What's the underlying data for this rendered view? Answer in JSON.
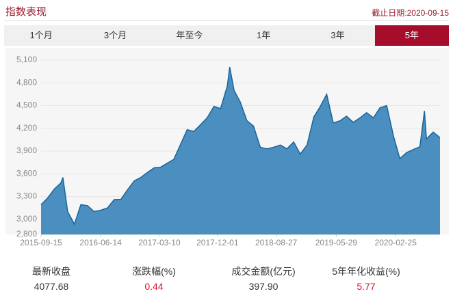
{
  "header": {
    "title": "指数表现",
    "date": "截止日期:2020-09-15"
  },
  "tabs": {
    "items": [
      "1个月",
      "3个月",
      "年至今",
      "1年",
      "3年",
      "5年"
    ],
    "selected_index": 5
  },
  "chart_data": {
    "type": "area",
    "color": "#4a8fbf",
    "line_color": "#1a649b",
    "grid": true,
    "x": [
      "2015-09-15",
      "2015-10-15",
      "2015-11-15",
      "2015-12-15",
      "2015-12-24",
      "2016-01-15",
      "2016-02-15",
      "2016-03-15",
      "2016-04-15",
      "2016-05-15",
      "2016-06-15",
      "2016-07-15",
      "2016-08-15",
      "2016-09-15",
      "2016-10-15",
      "2016-11-15",
      "2016-12-15",
      "2017-01-15",
      "2017-02-15",
      "2017-03-15",
      "2017-04-15",
      "2017-05-15",
      "2017-06-15",
      "2017-07-15",
      "2017-08-15",
      "2017-09-15",
      "2017-10-15",
      "2017-11-15",
      "2017-12-15",
      "2018-01-15",
      "2018-01-26",
      "2018-02-15",
      "2018-03-15",
      "2018-04-15",
      "2018-05-15",
      "2018-06-15",
      "2018-07-15",
      "2018-08-15",
      "2018-09-15",
      "2018-10-15",
      "2018-11-15",
      "2018-12-15",
      "2019-01-15",
      "2019-02-15",
      "2019-03-15",
      "2019-04-15",
      "2019-05-15",
      "2019-06-15",
      "2019-07-15",
      "2019-08-15",
      "2019-09-15",
      "2019-10-15",
      "2019-11-15",
      "2019-12-15",
      "2020-01-15",
      "2020-02-15",
      "2020-03-15",
      "2020-04-15",
      "2020-05-15",
      "2020-06-15",
      "2020-07-06",
      "2020-07-15",
      "2020-08-15",
      "2020-09-15"
    ],
    "values": [
      3192,
      3282,
      3400,
      3480,
      3552,
      3100,
      2935,
      3192,
      3180,
      3102,
      3120,
      3150,
      3260,
      3264,
      3390,
      3507,
      3552,
      3620,
      3680,
      3687,
      3740,
      3790,
      3990,
      4182,
      4160,
      4250,
      4340,
      4490,
      4460,
      4760,
      5010,
      4700,
      4550,
      4300,
      4230,
      3950,
      3930,
      3950,
      3980,
      3930,
      4020,
      3860,
      3980,
      4350,
      4480,
      4650,
      4272,
      4300,
      4360,
      4280,
      4340,
      4407,
      4340,
      4470,
      4500,
      4100,
      3800,
      3880,
      3920,
      3957,
      4430,
      4060,
      4150,
      4077.68
    ],
    "xlim": [
      "2015-09-15",
      "2020-09-15"
    ],
    "xticks": [
      "2015-09-15",
      "2016-06-14",
      "2017-03-10",
      "2017-12-01",
      "2018-08-27",
      "2019-05-29",
      "2020-02-25"
    ],
    "ylim": [
      2800,
      5100
    ],
    "yticks": [
      {
        "value": 2800,
        "label": "2,800"
      },
      {
        "value": 3000,
        "label": "3,000"
      },
      {
        "value": 3300,
        "label": "3,300"
      },
      {
        "value": 3600,
        "label": "3,600"
      },
      {
        "value": 3900,
        "label": "3,900"
      },
      {
        "value": 4200,
        "label": "4,200"
      },
      {
        "value": 4500,
        "label": "4,500"
      },
      {
        "value": 4800,
        "label": "4,800"
      },
      {
        "value": 5100,
        "label": "5,100"
      }
    ]
  },
  "stats": {
    "labels": [
      "最新收盘",
      "涨跌幅(%)",
      "成交金额(亿元)",
      "5年年化收益(%)"
    ],
    "values": [
      "4077.68",
      "0.44",
      "397.90",
      "5.77"
    ]
  }
}
